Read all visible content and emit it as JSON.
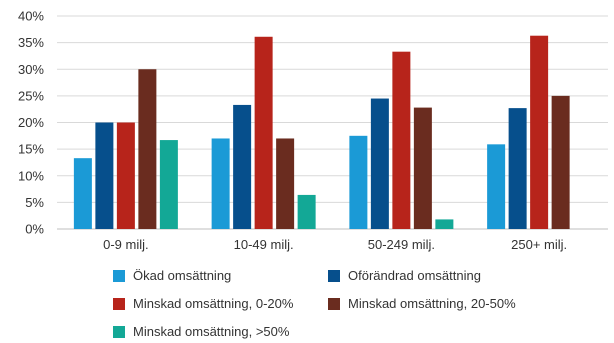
{
  "chart_data": {
    "type": "bar",
    "categories": [
      "0-9 milj.",
      "10-49 milj.",
      "50-249 milj.",
      "250+ milj."
    ],
    "series": [
      {
        "name": "Ökad omsättning",
        "color": "#1b9ad6",
        "values": [
          13.3,
          17.0,
          17.5,
          15.9
        ]
      },
      {
        "name": "Oförändrad omsättning",
        "color": "#064f8c",
        "values": [
          20.0,
          23.3,
          24.5,
          22.7
        ]
      },
      {
        "name": "Minskad omsättning, 0-20%",
        "color": "#b7241b",
        "values": [
          20.0,
          36.1,
          33.3,
          36.3
        ]
      },
      {
        "name": "Minskad omsättning, 20-50%",
        "color": "#6a2c1f",
        "values": [
          30.0,
          17.0,
          22.8,
          25.0
        ]
      },
      {
        "name": "Minskad omsättning, >50%",
        "color": "#13a896",
        "values": [
          16.7,
          6.4,
          1.8,
          0
        ]
      }
    ],
    "ylim": [
      0,
      40
    ],
    "yticks": [
      "0%",
      "5%",
      "10%",
      "15%",
      "20%",
      "25%",
      "30%",
      "35%",
      "40%"
    ],
    "grid": true,
    "legend_position": "bottom"
  }
}
